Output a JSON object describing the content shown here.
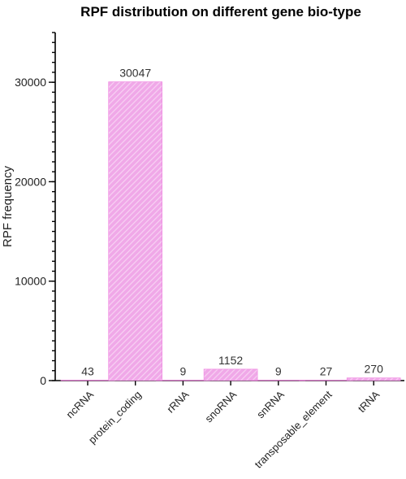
{
  "chart_data": {
    "type": "bar",
    "title": "RPF distribution on different gene bio-type",
    "xlabel": "",
    "ylabel": "RPF frequency",
    "categories": [
      "ncRNA",
      "protein_coding",
      "rRNA",
      "snoRNA",
      "snRNA",
      "transposable_element",
      "tRNA"
    ],
    "values": [
      43,
      30047,
      9,
      1152,
      9,
      27,
      270
    ],
    "data_labels": [
      "43",
      "30047",
      "9",
      "1152",
      "9",
      "27",
      "270"
    ],
    "yticks": [
      0,
      10000,
      20000,
      30000
    ],
    "ytick_labels": [
      "0",
      "10000",
      "20000",
      "30000"
    ],
    "ylim": [
      0,
      35000
    ],
    "minor_tick_step": 1000,
    "grid": false,
    "legend": "none",
    "bar_fill": "#f0a8e8",
    "bar_hatch": "#f7d0f3",
    "bar_edge": "#f080e0"
  }
}
